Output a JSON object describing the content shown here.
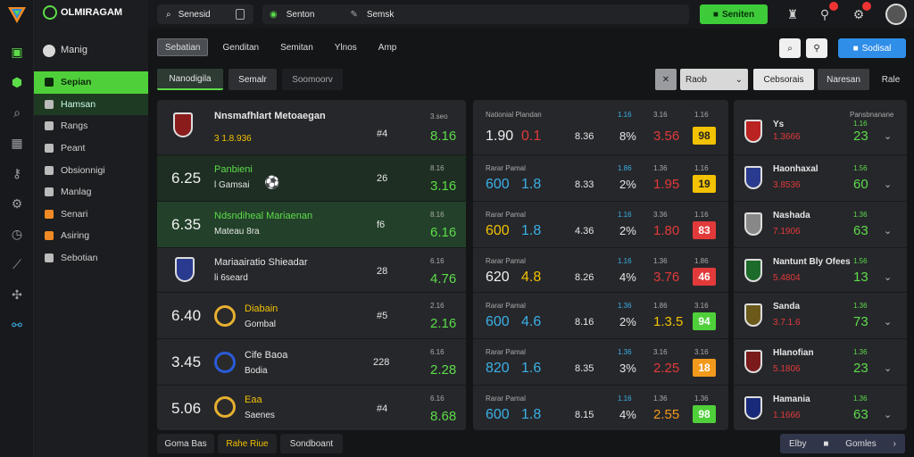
{
  "brand": {
    "name": "OLMIRAGAM"
  },
  "sidebar": {
    "menu_label": "Manig",
    "items": [
      {
        "label": "Sepian"
      },
      {
        "label": "Hamsan"
      },
      {
        "label": "Rangs"
      },
      {
        "label": "Peant"
      },
      {
        "label": "Obsionnigi"
      },
      {
        "label": "Manlag"
      },
      {
        "label": "Senari"
      },
      {
        "label": "Asiring"
      },
      {
        "label": "Sebotian"
      }
    ]
  },
  "topbar": {
    "search_left": "Senesid",
    "search_main": "Senton",
    "search_main_hint": "Semsk",
    "action_button": "Seniten"
  },
  "tabs": [
    {
      "label": "Sebatian"
    },
    {
      "label": "Genditan"
    },
    {
      "label": "Semitan"
    },
    {
      "label": "Ylnos"
    },
    {
      "label": "Amp"
    }
  ],
  "toolbar": {
    "primary_button": "Sodisal"
  },
  "subtabs": [
    {
      "label": "Nanodigila"
    },
    {
      "label": "Semalr"
    },
    {
      "label": "Soomoorv"
    }
  ],
  "controls": {
    "select": "Raob",
    "button_a": "Cebsorais",
    "button_b": "Naresan",
    "button_c": "Rale"
  },
  "left_matches": [
    {
      "name": "Nnsmafhlart Metoaegan",
      "sub": "3 1.8.936",
      "num": "#4",
      "small": "3.seo",
      "val": "8.16"
    },
    {
      "time": "6.25",
      "name": "Panbieni",
      "sub": "l Gamsai",
      "num": "26",
      "small": "8.16",
      "val": "3.16"
    },
    {
      "time": "6.35",
      "name": "Ndsndiheal Mariaenan",
      "sub": "Mateau 8ra",
      "num": "f6",
      "small": "8.16",
      "val": "6.16"
    },
    {
      "name": "Mariaairatio Shieadar",
      "sub": "li 6seard",
      "num": "28",
      "small": "6.16",
      "val": "4.76"
    },
    {
      "time": "6.40",
      "name": "Diabain",
      "sub": "Gombal",
      "num": "#5",
      "small": "2.16",
      "val": "2.16"
    },
    {
      "time": "3.45",
      "name": "Cife Baoa",
      "sub": "Bodia",
      "num": "228",
      "small": "6.16",
      "val": "2.28"
    },
    {
      "time": "5.06",
      "name": "Eaa",
      "sub": "Saenes",
      "num": "#4",
      "small": "6.16",
      "val": "8.68"
    }
  ],
  "mid_header": {
    "a": "Nationial",
    "b": "Plandan",
    "c": "1.16",
    "d": "3.16",
    "e": "1.16"
  },
  "mid_rows": [
    {
      "label": "Nationial Plandan",
      "v1": "1.90",
      "v2": "0.1",
      "v3": "8.36",
      "pct": "8%",
      "r": "3.56",
      "chip": "98",
      "chip_color": "#f2c200",
      "top": [
        "1.16",
        "3.16",
        "1.16"
      ]
    },
    {
      "label": "Rarar Pamal",
      "v1": "600",
      "v2": "1.8",
      "v3": "8.33",
      "pct": "2%",
      "r": "1.95",
      "chip": "19",
      "chip_color": "#f2c200",
      "top": [
        "1.86",
        "1.36",
        "1.16"
      ]
    },
    {
      "label": "Rarar Pamal",
      "v1": "600",
      "v2": "1.8",
      "v3": "4.36",
      "pct": "2%",
      "r": "1.80",
      "chip": "83",
      "chip_color": "#e23a3a",
      "top": [
        "1.16",
        "3.36",
        "1.16"
      ]
    },
    {
      "label": "Rarar Pamal",
      "v1": "620",
      "v2": "4.8",
      "v3": "8.26",
      "pct": "4%",
      "r": "3.76",
      "chip": "46",
      "chip_color": "#e23a3a",
      "top": [
        "1.16",
        "1.36",
        "1.86"
      ]
    },
    {
      "label": "Rarar Pamal",
      "v1": "600",
      "v2": "4.6",
      "v3": "8.16",
      "pct": "2%",
      "r": "1.3.5",
      "chip": "94",
      "chip_color": "#4fd03a",
      "top": [
        "1.36",
        "1.86",
        "3.16"
      ]
    },
    {
      "label": "Rarar Pamal",
      "v1": "820",
      "v2": "1.6",
      "v3": "8.35",
      "pct": "3%",
      "r": "2.25",
      "chip": "18",
      "chip_color": "#f29a1c",
      "top": [
        "1.36",
        "3.16",
        "3.16"
      ]
    },
    {
      "label": "Rarar Pamal",
      "v1": "600",
      "v2": "1.8",
      "v3": "8.15",
      "pct": "4%",
      "r": "2.55",
      "chip": "98",
      "chip_color": "#4fd03a",
      "top": [
        "1.16",
        "1.36",
        "1.36"
      ]
    }
  ],
  "right_header": "Pansbnanane",
  "right_rows": [
    {
      "name": "Ys",
      "sub": "1.3666",
      "v": "1.16",
      "big": "23"
    },
    {
      "name": "Haonhaxal",
      "sub": "3.8536",
      "v": "1.56",
      "big": "60"
    },
    {
      "name": "Nashada",
      "sub": "7.1906",
      "v": "1.36",
      "big": "63"
    },
    {
      "name": "Nantunt Bly Ofees",
      "sub": "5.4804",
      "v": "1.56",
      "big": "13"
    },
    {
      "name": "Sanda",
      "sub": "3.7.1.6",
      "v": "1.36",
      "big": "73"
    },
    {
      "name": "Hlanofian",
      "sub": "5.1806",
      "v": "1.36",
      "big": "23"
    },
    {
      "name": "Hamania",
      "sub": "1.1666",
      "v": "1.36",
      "big": "63"
    }
  ],
  "bottom": {
    "b1": "Goma Bas",
    "b2": "Rahe Riue",
    "b3": "Sondboant",
    "b4": "Elby",
    "b5": "Gomles"
  }
}
